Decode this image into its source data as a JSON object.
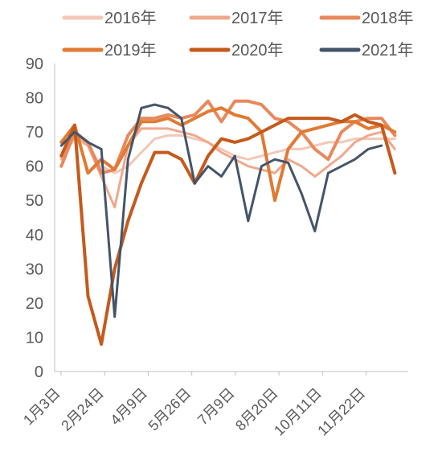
{
  "chart_data": {
    "type": "line",
    "title": "",
    "xlabel": "",
    "ylabel": "",
    "ylim": [
      0,
      90
    ],
    "yticks": [
      0,
      10,
      20,
      30,
      40,
      50,
      60,
      70,
      80,
      90
    ],
    "x_categories": [
      "1月3日",
      "2月24日",
      "4月9日",
      "5月26日",
      "7月9日",
      "8月20日",
      "10月11日",
      "11月22日"
    ],
    "grid": false,
    "legend_position": "top",
    "x": [
      1,
      3,
      5,
      7,
      9,
      11,
      13,
      15,
      17,
      19,
      21,
      23,
      25,
      27,
      29,
      31,
      33,
      35,
      37,
      39,
      41,
      43,
      45,
      47,
      49,
      51
    ],
    "series": [
      {
        "name": "2016年",
        "color": "#f4c7b6",
        "width": 3,
        "values": [
          63,
          68,
          66,
          60,
          58,
          60,
          64,
          68,
          69,
          69,
          68,
          67,
          65,
          63,
          62,
          63,
          64,
          65,
          65,
          66,
          67,
          67,
          68,
          68,
          68,
          68
        ]
      },
      {
        "name": "2017年",
        "color": "#f0a88c",
        "width": 3,
        "values": [
          62,
          69,
          66,
          57,
          48,
          66,
          71,
          71,
          71,
          70,
          69,
          67,
          64,
          62,
          60,
          59,
          58,
          62,
          60,
          57,
          60,
          63,
          67,
          69,
          70,
          65
        ]
      },
      {
        "name": "2018年",
        "color": "#e8895d",
        "width": 4,
        "values": [
          60,
          70,
          67,
          58,
          59,
          69,
          74,
          74,
          75,
          74,
          75,
          79,
          73,
          79,
          79,
          78,
          74,
          73,
          70,
          65,
          62,
          70,
          73,
          74,
          74,
          69
        ]
      },
      {
        "name": "2019年",
        "color": "#e07a34",
        "width": 4,
        "values": [
          67,
          72,
          58,
          62,
          59,
          66,
          73,
          73,
          74,
          72,
          74,
          76,
          77,
          75,
          74,
          70,
          50,
          65,
          70,
          71,
          72,
          73,
          73,
          71,
          72,
          70
        ]
      },
      {
        "name": "2020年",
        "color": "#c55a1c",
        "width": 4,
        "values": [
          63,
          72,
          22,
          8,
          30,
          44,
          55,
          64,
          64,
          62,
          55,
          63,
          68,
          67,
          68,
          70,
          72,
          74,
          74,
          74,
          74,
          73,
          75,
          73,
          72,
          58
        ]
      },
      {
        "name": "2021年",
        "color": "#44546a",
        "width": 3,
        "values": [
          66,
          70,
          67,
          65,
          16,
          62,
          77,
          78,
          77,
          74,
          55,
          60,
          57,
          63,
          44,
          60,
          62,
          61,
          52,
          41,
          58,
          60,
          62,
          65,
          66,
          null
        ]
      }
    ]
  }
}
